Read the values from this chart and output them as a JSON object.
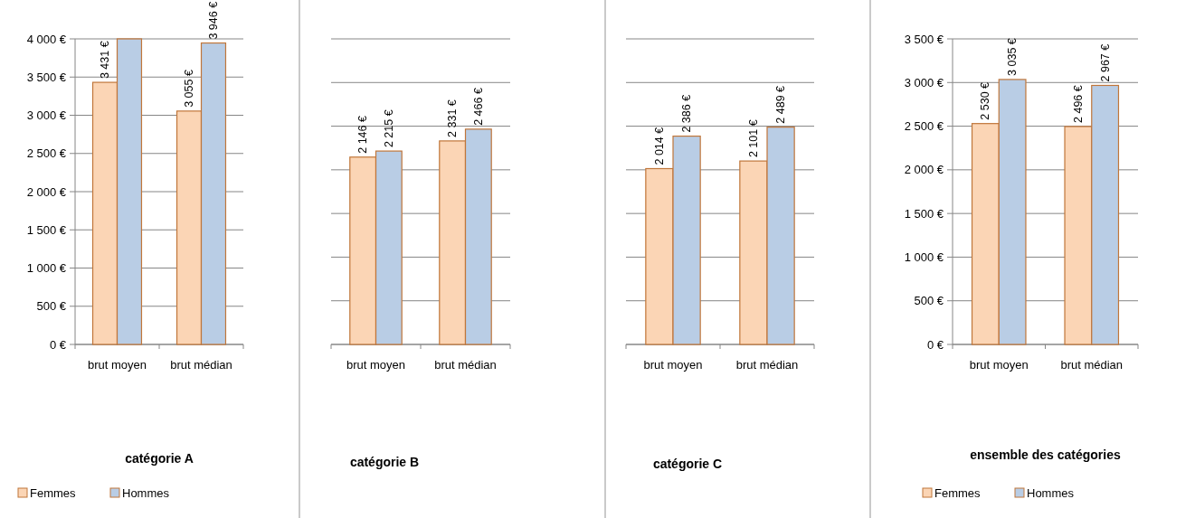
{
  "chart_data": [
    {
      "type": "bar",
      "title": "catégorie  A",
      "categories": [
        "brut moyen",
        "brut médian"
      ],
      "series": [
        {
          "name": "Femmes",
          "color": "#fbd5b5",
          "values": [
            3431,
            3055
          ],
          "value_labels": [
            "3 431 €",
            "3 055 €"
          ]
        },
        {
          "name": "Hommes",
          "color": "#b9cde5",
          "values": [
            4000,
            3946
          ],
          "value_labels": [
            null,
            "3 946 €"
          ]
        }
      ],
      "ylim": [
        0,
        4000
      ],
      "yticks": [
        {
          "value": 0,
          "label": "0 €"
        },
        {
          "value": 500,
          "label": "500 €"
        },
        {
          "value": 1000,
          "label": "1 000 €"
        },
        {
          "value": 1500,
          "label": "1 500 €"
        },
        {
          "value": 2000,
          "label": "2 000 €"
        },
        {
          "value": 2500,
          "label": "2 500 €"
        },
        {
          "value": 3000,
          "label": "3 000 €"
        },
        {
          "value": 3500,
          "label": "3 500 €"
        },
        {
          "value": 4000,
          "label": "4 000 €"
        }
      ],
      "grid": "y",
      "legend": "bottom"
    },
    {
      "type": "bar",
      "title": "catégorie  B",
      "categories": [
        "brut moyen",
        "brut médian"
      ],
      "series": [
        {
          "color": "#fbd5b5",
          "values": [
            2146,
            2331
          ],
          "value_labels": [
            "2 146 €",
            "2 331 €"
          ]
        },
        {
          "color": "#b9cde5",
          "values": [
            2215,
            2466
          ],
          "value_labels": [
            "2 215 €",
            "2 466 €"
          ]
        }
      ],
      "ylim": [
        0,
        3500
      ],
      "yticks": [
        0,
        500,
        1000,
        1500,
        2000,
        2500,
        3000,
        3500
      ],
      "tick_labels": "x",
      "grid": "y",
      "legend": false
    },
    {
      "type": "bar",
      "title": "catégorie  C",
      "categories": [
        "brut moyen",
        "brut médian"
      ],
      "series": [
        {
          "color": "#fbd5b5",
          "values": [
            2014,
            2101
          ],
          "value_labels": [
            "2 014 €",
            "2 101 €"
          ]
        },
        {
          "color": "#b9cde5",
          "values": [
            2386,
            2489
          ],
          "value_labels": [
            "2 386 €",
            "2 489 €"
          ]
        }
      ],
      "ylim": [
        0,
        3500
      ],
      "yticks": [
        0,
        500,
        1000,
        1500,
        2000,
        2500,
        3000,
        3500
      ],
      "tick_labels": "x",
      "grid": "y",
      "legend": false
    },
    {
      "type": "bar",
      "title": "ensemble des catégories",
      "categories": [
        "brut moyen",
        "brut médian"
      ],
      "series": [
        {
          "name": "Femmes",
          "color": "#fbd5b5",
          "values": [
            2530,
            2496
          ],
          "value_labels": [
            "2 530 €",
            "2 496 €"
          ]
        },
        {
          "name": "Hommes",
          "color": "#b9cde5",
          "values": [
            3035,
            2967
          ],
          "value_labels": [
            "3 035 €",
            "2 967 €"
          ]
        }
      ],
      "ylim": [
        0,
        3500
      ],
      "yticks": [
        {
          "value": 0,
          "label": "0 €"
        },
        {
          "value": 500,
          "label": "500 €"
        },
        {
          "value": 1000,
          "label": "1 000 €"
        },
        {
          "value": 1500,
          "label": "1 500 €"
        },
        {
          "value": 2000,
          "label": "2 000 €"
        },
        {
          "value": 2500,
          "label": "2 500 €"
        },
        {
          "value": 3000,
          "label": "3 000 €"
        },
        {
          "value": 3500,
          "label": "3 500 €"
        }
      ],
      "grid": "y",
      "legend": "bottom"
    }
  ]
}
